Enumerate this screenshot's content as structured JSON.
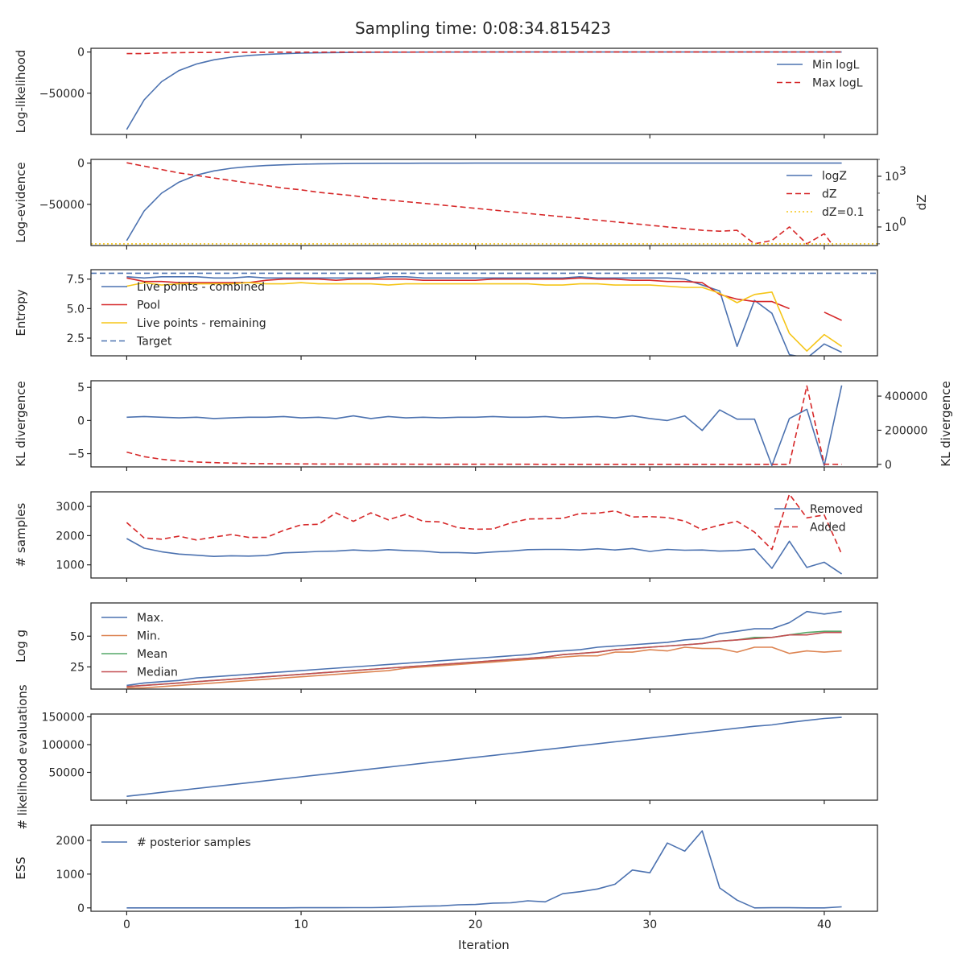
{
  "figure": {
    "title": "Sampling time: 0:08:34.815423",
    "xlabel": "Iteration"
  },
  "chart_data": [
    {
      "type": "line",
      "ylabel": "Log-likelihood",
      "ylim": [
        -100000,
        4500
      ],
      "yticks": [
        0,
        -50000
      ],
      "yticklabels": [
        "0",
        "−50000"
      ],
      "legend": "upper-right",
      "series": [
        {
          "name": "Min logL",
          "color": "#4c72b0",
          "style": "solid",
          "values": [
            -94000,
            -58000,
            -36000,
            -22500,
            -14500,
            -9500,
            -6200,
            -4200,
            -2900,
            -2000,
            -1400,
            -1000,
            -700,
            -480,
            -330,
            -230,
            -160,
            -110,
            -80,
            -55,
            -40,
            -30,
            -20,
            -15,
            -10,
            -8,
            -6,
            -5,
            -4,
            -3,
            -2,
            -2,
            -2,
            -1,
            -1,
            -1,
            -1,
            -1,
            0,
            0,
            0,
            0
          ]
        },
        {
          "name": "Max logL",
          "color": "#d62728",
          "style": "dashed",
          "values": [
            -1900,
            -1800,
            -1100,
            -800,
            -600,
            -500,
            -400,
            -330,
            -270,
            -220,
            -180,
            -150,
            -120,
            -100,
            -80,
            -65,
            -55,
            -45,
            -37,
            -30,
            -25,
            -20,
            -16,
            -13,
            -10,
            -8,
            -6,
            -5,
            -4,
            -3,
            -2,
            -2,
            -1,
            -1,
            -1,
            -1,
            0,
            0,
            0,
            0,
            0,
            0
          ]
        }
      ]
    },
    {
      "type": "line",
      "ylabel": "Log-evidence",
      "ylabel2": "dZ",
      "ylim": [
        -100000,
        4500
      ],
      "yticks": [
        0,
        -50000
      ],
      "yticklabels": [
        "0",
        "−50000"
      ],
      "y2scale": "log",
      "y2lim_exp": [
        -1.1,
        4.0
      ],
      "y2ticks_exp": [
        0,
        3
      ],
      "y2ticklabels": [
        "10",
        "10"
      ],
      "y2tickexponents": [
        "0",
        "3"
      ],
      "legend": "upper-right",
      "series": [
        {
          "name": "logZ",
          "color": "#4c72b0",
          "style": "solid",
          "axis": "left",
          "values": [
            -94000,
            -58000,
            -36500,
            -23000,
            -14500,
            -9500,
            -6200,
            -4200,
            -2900,
            -2000,
            -1400,
            -1000,
            -700,
            -480,
            -330,
            -230,
            -160,
            -110,
            -80,
            -55,
            -40,
            -30,
            -20,
            -15,
            -10,
            -8,
            -6,
            -5,
            -4,
            -3,
            -2,
            -2,
            -2,
            -1,
            -1,
            -1,
            -1,
            -1,
            0,
            0,
            0,
            0
          ]
        },
        {
          "name": "dZ",
          "color": "#d62728",
          "style": "dashed",
          "axis": "right",
          "log10_values": [
            3.8,
            3.6,
            3.4,
            3.2,
            3.05,
            2.9,
            2.75,
            2.6,
            2.45,
            2.3,
            2.2,
            2.05,
            1.95,
            1.85,
            1.7,
            1.6,
            1.5,
            1.4,
            1.3,
            1.2,
            1.1,
            1.0,
            0.9,
            0.8,
            0.7,
            0.6,
            0.5,
            0.4,
            0.3,
            0.2,
            0.1,
            0.0,
            -0.1,
            -0.2,
            -0.25,
            -0.2,
            -1.0,
            -0.8,
            0.0,
            -1.0,
            -0.4,
            -1.8
          ]
        },
        {
          "name": "dZ=0.1",
          "color": "#f5c518",
          "style": "dotted",
          "axis": "right",
          "log10_values": [
            -1,
            -1
          ]
        }
      ]
    },
    {
      "type": "line",
      "ylabel": "Entropy",
      "ylim": [
        1.0,
        8.3
      ],
      "yticks": [
        2.5,
        5.0,
        7.5
      ],
      "yticklabels": [
        "2.5",
        "5.0",
        "7.5"
      ],
      "legend": "upper-left",
      "series": [
        {
          "name": "Live points - combined",
          "color": "#4c72b0",
          "style": "solid",
          "values": [
            7.7,
            7.6,
            7.7,
            7.7,
            7.7,
            7.6,
            7.6,
            7.7,
            7.6,
            7.6,
            7.6,
            7.6,
            7.6,
            7.6,
            7.6,
            7.7,
            7.7,
            7.6,
            7.6,
            7.6,
            7.6,
            7.6,
            7.6,
            7.6,
            7.6,
            7.6,
            7.7,
            7.6,
            7.6,
            7.6,
            7.6,
            7.6,
            7.5,
            7.0,
            6.5,
            1.8,
            5.7,
            4.6,
            1.1,
            0.8,
            2.0,
            1.3
          ]
        },
        {
          "name": "Pool",
          "color": "#d62728",
          "style": "solid",
          "values": [
            7.6,
            7.3,
            7.3,
            7.2,
            7.2,
            7.2,
            7.2,
            7.2,
            7.4,
            7.5,
            7.5,
            7.5,
            7.4,
            7.5,
            7.5,
            7.5,
            7.5,
            7.4,
            7.4,
            7.4,
            7.4,
            7.5,
            7.5,
            7.5,
            7.5,
            7.5,
            7.6,
            7.5,
            7.5,
            7.4,
            7.4,
            7.3,
            7.3,
            7.2,
            6.2,
            5.8,
            5.6,
            5.6,
            5.0,
            null,
            4.7,
            4.0
          ]
        },
        {
          "name": "Live points - remaining",
          "color": "#f5c518",
          "style": "solid",
          "values": [
            6.9,
            7.2,
            7.0,
            7.1,
            7.1,
            7.1,
            7.1,
            7.2,
            7.1,
            7.1,
            7.2,
            7.1,
            7.1,
            7.1,
            7.1,
            7.0,
            7.1,
            7.1,
            7.1,
            7.1,
            7.1,
            7.1,
            7.1,
            7.1,
            7.0,
            7.0,
            7.1,
            7.1,
            7.0,
            7.0,
            7.0,
            6.9,
            6.8,
            6.8,
            6.3,
            5.5,
            6.2,
            6.4,
            2.9,
            1.4,
            2.8,
            1.8
          ]
        },
        {
          "name": "Target",
          "color": "#4c72b0",
          "style": "dashed",
          "values_const": 8.0
        }
      ]
    },
    {
      "type": "line",
      "ylabel": "KL divergence",
      "ylabel2": "KL divergence",
      "ylim": [
        -7.0,
        6.0
      ],
      "yticks": [
        5,
        0,
        -5
      ],
      "yticklabels": [
        "5",
        "0",
        "−5"
      ],
      "y2lim": [
        -15000,
        490000
      ],
      "y2ticks": [
        0,
        200000,
        400000
      ],
      "y2ticklabels": [
        "0",
        "200000",
        "400000"
      ],
      "series": [
        {
          "name": "",
          "color": "#4c72b0",
          "style": "solid",
          "axis": "left",
          "values": [
            0.5,
            0.6,
            0.5,
            0.4,
            0.5,
            0.3,
            0.4,
            0.5,
            0.5,
            0.6,
            0.4,
            0.5,
            0.3,
            0.7,
            0.3,
            0.6,
            0.4,
            0.5,
            0.4,
            0.5,
            0.5,
            0.6,
            0.5,
            0.5,
            0.6,
            0.4,
            0.5,
            0.6,
            0.4,
            0.7,
            0.3,
            0.0,
            0.7,
            -1.5,
            1.6,
            0.2,
            0.2,
            -6.8,
            0.3,
            1.7,
            -6.8,
            5.3
          ]
        },
        {
          "name": "",
          "color": "#d62728",
          "style": "dashed",
          "axis": "right",
          "values": [
            72000,
            45000,
            30000,
            20000,
            14000,
            10000,
            7000,
            5000,
            4000,
            3000,
            2500,
            2000,
            1800,
            1500,
            1200,
            1000,
            900,
            800,
            700,
            600,
            500,
            450,
            400,
            350,
            300,
            280,
            250,
            220,
            200,
            180,
            160,
            150,
            140,
            130,
            120,
            110,
            100,
            90,
            100,
            460000,
            500,
            200
          ]
        }
      ]
    },
    {
      "type": "line",
      "ylabel": "# samples",
      "ylim": [
        550,
        3500
      ],
      "yticks": [
        1000,
        2000,
        3000
      ],
      "yticklabels": [
        "1000",
        "2000",
        "3000"
      ],
      "legend": "upper-right",
      "series": [
        {
          "name": "Removed",
          "color": "#4c72b0",
          "style": "solid",
          "values": [
            1900,
            1570,
            1450,
            1370,
            1330,
            1290,
            1310,
            1300,
            1320,
            1410,
            1430,
            1460,
            1470,
            1510,
            1480,
            1520,
            1490,
            1470,
            1420,
            1420,
            1400,
            1440,
            1470,
            1520,
            1530,
            1530,
            1510,
            1550,
            1510,
            1560,
            1460,
            1530,
            1500,
            1510,
            1470,
            1490,
            1540,
            880,
            1810,
            910,
            1090,
            690
          ]
        },
        {
          "name": "Added",
          "color": "#d62728",
          "style": "dashed",
          "values": [
            2450,
            1920,
            1880,
            1980,
            1850,
            1950,
            2040,
            1940,
            1940,
            2180,
            2370,
            2390,
            2780,
            2490,
            2780,
            2540,
            2730,
            2490,
            2470,
            2270,
            2220,
            2230,
            2430,
            2570,
            2580,
            2590,
            2760,
            2770,
            2850,
            2640,
            2650,
            2620,
            2500,
            2200,
            2360,
            2490,
            2120,
            1530,
            3420,
            2610,
            2710,
            1370
          ]
        }
      ]
    },
    {
      "type": "line",
      "ylabel": "Log g",
      "ylim": [
        7,
        77
      ],
      "yticks": [
        25,
        50
      ],
      "yticklabels": [
        "25",
        "50"
      ],
      "legend": "upper-left",
      "series": [
        {
          "name": "Max.",
          "color": "#4c72b0",
          "style": "solid",
          "values": [
            10,
            12,
            13,
            14,
            16,
            17,
            18,
            19,
            20,
            21,
            22,
            23,
            24,
            25,
            26,
            27,
            28,
            29,
            30,
            31,
            32,
            33,
            34,
            35,
            37,
            38,
            39,
            41,
            42,
            43,
            44,
            45,
            47,
            48,
            52,
            54,
            56,
            56,
            61,
            70,
            68,
            70
          ]
        },
        {
          "name": "Min.",
          "color": "#dd8452",
          "style": "solid",
          "values": [
            8,
            8,
            9,
            10,
            11,
            12,
            13,
            14,
            15,
            16,
            17,
            18,
            19,
            20,
            21,
            22,
            24,
            25,
            26,
            27,
            28,
            29,
            30,
            31,
            32,
            33,
            34,
            34,
            37,
            37,
            39,
            38,
            41,
            40,
            40,
            37,
            41,
            41,
            36,
            38,
            37,
            38
          ]
        },
        {
          "name": "Mean",
          "color": "#55a868",
          "style": "solid",
          "values": [
            9,
            10,
            11,
            12,
            13,
            14,
            15,
            16,
            17,
            18,
            19,
            20,
            21,
            22,
            23,
            24,
            25,
            26,
            27,
            28,
            29,
            30,
            31,
            32,
            33,
            35,
            36,
            37,
            39,
            40,
            41,
            42,
            43,
            44,
            46,
            47,
            49,
            49,
            51,
            53,
            54,
            54
          ]
        },
        {
          "name": "Median",
          "color": "#c44e52",
          "style": "solid",
          "values": [
            9,
            10,
            11,
            12,
            13,
            14,
            15,
            16,
            17,
            18,
            19,
            20,
            21,
            22,
            23,
            24,
            25,
            26,
            27,
            28,
            29,
            30,
            31,
            32,
            33,
            35,
            36,
            37,
            39,
            40,
            41,
            42,
            43,
            44,
            46,
            47,
            48,
            49,
            51,
            51,
            53,
            53
          ]
        }
      ]
    },
    {
      "type": "line",
      "ylabel": "# likelihood evaluations",
      "ylim": [
        0,
        155000
      ],
      "yticks": [
        50000,
        100000,
        150000
      ],
      "yticklabels": [
        "50000",
        "100000",
        "150000"
      ],
      "series": [
        {
          "name": "",
          "color": "#4c72b0",
          "style": "solid",
          "values": [
            7000,
            10500,
            14000,
            17500,
            21000,
            24500,
            28000,
            31500,
            35000,
            38500,
            42000,
            45500,
            49000,
            52500,
            56000,
            59500,
            63000,
            66500,
            70000,
            73500,
            77000,
            80500,
            84000,
            87500,
            91000,
            94500,
            98000,
            101500,
            105000,
            108500,
            112000,
            115500,
            119000,
            122500,
            126000,
            129500,
            133000,
            135500,
            140000,
            143500,
            147000,
            149000
          ]
        }
      ]
    },
    {
      "type": "line",
      "ylabel": "ESS",
      "ylim": [
        -100,
        2450
      ],
      "yticks": [
        0,
        1000,
        2000
      ],
      "yticklabels": [
        "0",
        "1000",
        "2000"
      ],
      "xticks": [
        0,
        10,
        20,
        30,
        40
      ],
      "xticklabels": [
        "0",
        "10",
        "20",
        "30",
        "40"
      ],
      "legend": "upper-left",
      "series": [
        {
          "name": "# posterior samples",
          "color": "#4c72b0",
          "style": "solid",
          "values": [
            0,
            0,
            0,
            0,
            0,
            0,
            0,
            0,
            0,
            0,
            5,
            5,
            5,
            8,
            8,
            15,
            30,
            50,
            60,
            90,
            100,
            140,
            150,
            210,
            180,
            420,
            480,
            560,
            700,
            1120,
            1040,
            1920,
            1680,
            2280,
            590,
            230,
            0,
            5,
            5,
            0,
            0,
            30
          ]
        }
      ]
    }
  ]
}
